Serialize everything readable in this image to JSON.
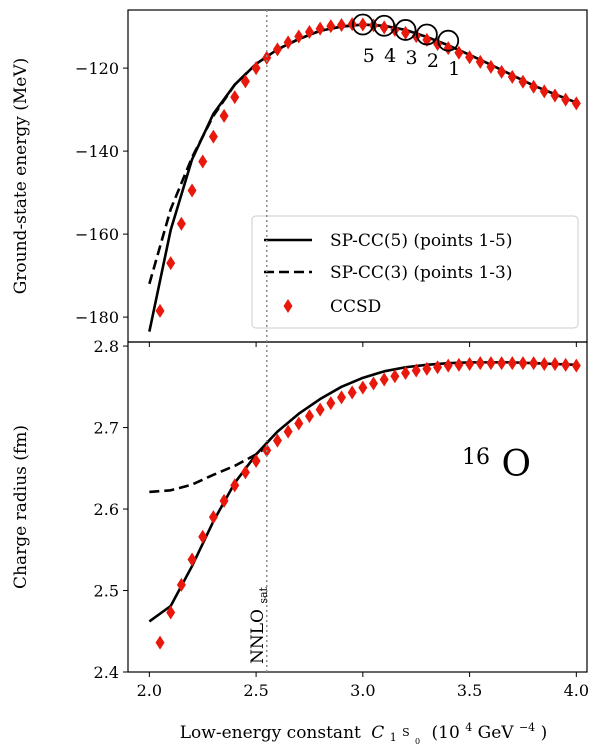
{
  "chart_data": [
    {
      "type": "line",
      "panel": "top",
      "xlim": [
        1.9,
        4.05
      ],
      "ylim": [
        -186,
        -106
      ],
      "ylabel": "Ground-state energy (MeV)",
      "yticks": [
        -120,
        -140,
        -160,
        -180
      ],
      "ytick_labels": [
        "−120",
        "−140",
        "−160",
        "−180"
      ],
      "grid": false,
      "legend_position": "lower-right",
      "series": [
        {
          "name": "SP-CC(5) (points 1-5)",
          "style": "solid",
          "color": "#000000",
          "x": [
            2.0,
            2.1,
            2.2,
            2.3,
            2.4,
            2.5,
            2.6,
            2.7,
            2.8,
            2.9,
            3.0,
            3.1,
            3.2,
            3.3,
            3.4,
            3.5,
            3.6,
            3.7,
            3.8,
            3.9,
            4.0
          ],
          "y": [
            -183.5,
            -159,
            -142,
            -131,
            -124,
            -119,
            -115.5,
            -113,
            -111,
            -110,
            -109.5,
            -109.8,
            -110.8,
            -112.5,
            -114.5,
            -116.8,
            -119.2,
            -121.7,
            -124.2,
            -126.3,
            -128.3
          ]
        },
        {
          "name": "SP-CC(3) (points 1-3)",
          "style": "dashed",
          "color": "#000000",
          "x": [
            2.0,
            2.1,
            2.2,
            2.3,
            2.4,
            2.5,
            2.6,
            2.7,
            2.8,
            2.9,
            3.0
          ],
          "y": [
            -172,
            -154,
            -141.5,
            -131.5,
            -124,
            -119,
            -115.5,
            -113,
            -111,
            -110,
            -109.5
          ]
        },
        {
          "name": "CCSD",
          "style": "marker",
          "marker": "diamond",
          "color": "#e8190c",
          "x": [
            2.05,
            2.1,
            2.15,
            2.2,
            2.25,
            2.3,
            2.35,
            2.4,
            2.45,
            2.5,
            2.55,
            2.6,
            2.65,
            2.7,
            2.75,
            2.8,
            2.85,
            2.9,
            2.95,
            3.0,
            3.05,
            3.1,
            3.15,
            3.2,
            3.25,
            3.3,
            3.35,
            3.4,
            3.45,
            3.5,
            3.55,
            3.6,
            3.65,
            3.7,
            3.75,
            3.8,
            3.85,
            3.9,
            3.95,
            4.0
          ],
          "y": [
            -178.5,
            -167,
            -157.5,
            -149.5,
            -142.5,
            -136.5,
            -131.5,
            -127,
            -123.2,
            -120,
            -117.5,
            -115.5,
            -113.8,
            -112.4,
            -111.3,
            -110.5,
            -109.9,
            -109.6,
            -109.4,
            -109.5,
            -109.7,
            -110.2,
            -110.8,
            -111.5,
            -112.3,
            -113.2,
            -114.2,
            -115.2,
            -116.3,
            -117.4,
            -118.5,
            -119.7,
            -120.9,
            -122.1,
            -123.3,
            -124.5,
            -125.6,
            -126.6,
            -127.6,
            -128.5
          ]
        }
      ],
      "annotations": [
        {
          "label": "5",
          "x": 3.0,
          "y": -109.5
        },
        {
          "label": "4",
          "x": 3.1,
          "y": -109.8
        },
        {
          "label": "3",
          "x": 3.2,
          "y": -110.8
        },
        {
          "label": "2",
          "x": 3.3,
          "y": -111.9
        },
        {
          "label": "1",
          "x": 3.4,
          "y": -113.4
        }
      ]
    },
    {
      "type": "line",
      "panel": "bottom",
      "xlim": [
        1.9,
        4.05
      ],
      "ylim": [
        2.4,
        2.805
      ],
      "xlabel": "Low-energy constant",
      "xlabel_symbol": "C",
      "xlabel_sub_base": "1",
      "xlabel_sub_sup": "S",
      "xlabel_sub_sup_sub": "0",
      "xlabel_units": "(10",
      "xlabel_units_exp": "4",
      "xlabel_units_tail": " GeV",
      "xlabel_units_tail_exp": "−4",
      "xlabel_units_close": ")",
      "ylabel": "Charge radius (fm)",
      "xticks": [
        2.0,
        2.5,
        3.0,
        3.5,
        4.0
      ],
      "xtick_labels": [
        "2.0",
        "2.5",
        "3.0",
        "3.5",
        "4.0"
      ],
      "yticks": [
        2.4,
        2.5,
        2.6,
        2.7,
        2.8
      ],
      "ytick_labels": [
        "2.4",
        "2.5",
        "2.6",
        "2.7",
        "2.8"
      ],
      "grid": false,
      "series": [
        {
          "name": "SP-CC(5) (points 1-5)",
          "style": "solid",
          "color": "#000000",
          "x": [
            2.0,
            2.1,
            2.2,
            2.3,
            2.4,
            2.5,
            2.6,
            2.7,
            2.8,
            2.9,
            3.0,
            3.1,
            3.2,
            3.3,
            3.4,
            3.5,
            3.6,
            3.7,
            3.8,
            3.9,
            4.0
          ],
          "y": [
            2.462,
            2.481,
            2.53,
            2.585,
            2.632,
            2.667,
            2.695,
            2.717,
            2.735,
            2.75,
            2.761,
            2.769,
            2.774,
            2.777,
            2.779,
            2.78,
            2.78,
            2.78,
            2.779,
            2.778,
            2.777
          ]
        },
        {
          "name": "SP-CC(3) (points 1-3)",
          "style": "dashed",
          "color": "#000000",
          "x": [
            2.0,
            2.1,
            2.2,
            2.3,
            2.4,
            2.5,
            2.55
          ],
          "y": [
            2.621,
            2.623,
            2.63,
            2.642,
            2.653,
            2.667,
            2.676
          ]
        },
        {
          "name": "CCSD",
          "style": "marker",
          "marker": "diamond",
          "color": "#e8190c",
          "x": [
            2.05,
            2.1,
            2.15,
            2.2,
            2.25,
            2.3,
            2.35,
            2.4,
            2.45,
            2.5,
            2.55,
            2.6,
            2.65,
            2.7,
            2.75,
            2.8,
            2.85,
            2.9,
            2.95,
            3.0,
            3.05,
            3.1,
            3.15,
            3.2,
            3.25,
            3.3,
            3.35,
            3.4,
            3.45,
            3.5,
            3.55,
            3.6,
            3.65,
            3.7,
            3.75,
            3.8,
            3.85,
            3.9,
            3.95,
            4.0
          ],
          "y": [
            2.436,
            2.473,
            2.507,
            2.538,
            2.566,
            2.59,
            2.61,
            2.629,
            2.645,
            2.659,
            2.672,
            2.684,
            2.695,
            2.705,
            2.714,
            2.722,
            2.73,
            2.737,
            2.743,
            2.749,
            2.754,
            2.759,
            2.763,
            2.767,
            2.77,
            2.772,
            2.774,
            2.776,
            2.777,
            2.778,
            2.779,
            2.779,
            2.779,
            2.779,
            2.779,
            2.779,
            2.778,
            2.778,
            2.777,
            2.776
          ]
        }
      ],
      "annotations": [
        {
          "label_sup": "16",
          "label": "O"
        }
      ]
    }
  ],
  "reference_line": {
    "x": 2.55,
    "style": "dotted",
    "color": "#8c8c8c",
    "label": "NNLO",
    "label_sub": "sat"
  }
}
